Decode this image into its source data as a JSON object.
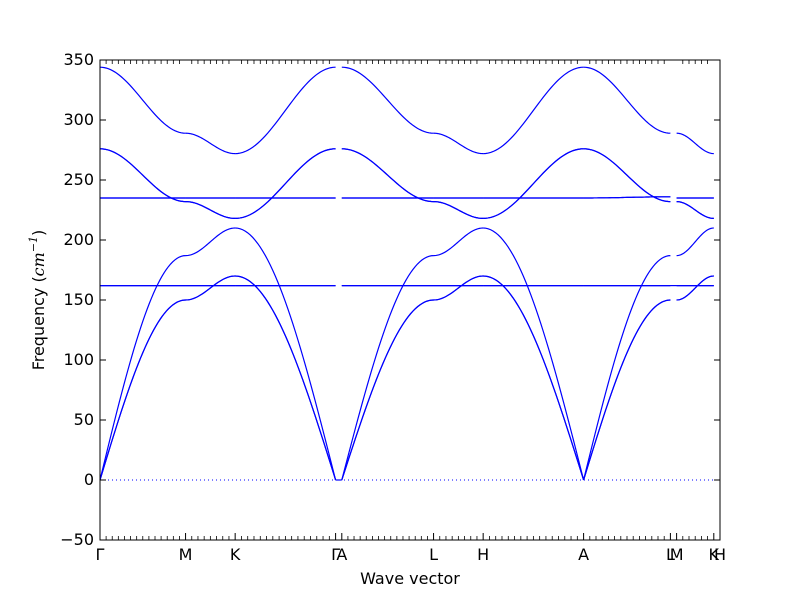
{
  "chart_data": {
    "type": "line",
    "title": "",
    "xlabel": "Wave vector",
    "ylabel_prefix": "Frequency (",
    "ylabel_unit_base": "cm",
    "ylabel_unit_exp": "−1",
    "ylabel_suffix": ")",
    "ylim": [
      -50,
      350
    ],
    "xlim": [
      0,
      5.0
    ],
    "yticks": [
      -50,
      0,
      50,
      100,
      150,
      200,
      250,
      300,
      350
    ],
    "ytick_labels": [
      "−50",
      "0",
      "50",
      "100",
      "150",
      "200",
      "250",
      "300",
      "350"
    ],
    "grid": false,
    "legend": "none",
    "color": "#0000ff",
    "zero_line": {
      "y": 0,
      "style": "dotted"
    },
    "k_points": [
      {
        "label": "Γ",
        "x": 0.0
      },
      {
        "label": "M",
        "x": 0.69
      },
      {
        "label": "K",
        "x": 1.09
      },
      {
        "label": "Γ",
        "x": 1.9
      },
      {
        "label": "A",
        "x": 1.95
      },
      {
        "label": "L",
        "x": 2.69
      },
      {
        "label": "H",
        "x": 3.09
      },
      {
        "label": "A",
        "x": 3.9
      },
      {
        "label": "L",
        "x": 4.6
      },
      {
        "label": "M",
        "x": 4.65
      },
      {
        "label": "K",
        "x": 4.95
      },
      {
        "label": "H",
        "x": 5.0
      }
    ],
    "segments": [
      {
        "x": [
          0.0,
          0.69
        ],
        "series": [
          [
            0,
            150
          ],
          [
            0,
            150
          ],
          [
            0,
            187
          ],
          [
            162,
            162
          ],
          [
            162,
            162
          ],
          [
            235,
            235
          ],
          [
            235,
            235
          ],
          [
            276,
            232
          ],
          [
            276,
            232
          ],
          [
            344,
            289
          ]
        ]
      },
      {
        "x": [
          0.69,
          1.09
        ],
        "series": [
          [
            150,
            170
          ],
          [
            150,
            170
          ],
          [
            187,
            210
          ],
          [
            162,
            162
          ],
          [
            162,
            162
          ],
          [
            235,
            235
          ],
          [
            235,
            235
          ],
          [
            232,
            218
          ],
          [
            232,
            218
          ],
          [
            289,
            272
          ]
        ]
      },
      {
        "x": [
          1.09,
          1.9
        ],
        "series": [
          [
            170,
            0
          ],
          [
            170,
            0
          ],
          [
            210,
            0
          ],
          [
            162,
            162
          ],
          [
            162,
            162
          ],
          [
            235,
            235
          ],
          [
            235,
            235
          ],
          [
            218,
            276
          ],
          [
            218,
            276
          ],
          [
            272,
            344
          ]
        ]
      },
      {
        "x": [
          1.95,
          2.69
        ],
        "series": [
          [
            0,
            150
          ],
          [
            0,
            150
          ],
          [
            0,
            187
          ],
          [
            162,
            162
          ],
          [
            162,
            162
          ],
          [
            235,
            235
          ],
          [
            235,
            235
          ],
          [
            276,
            232
          ],
          [
            276,
            232
          ],
          [
            344,
            289
          ]
        ]
      },
      {
        "x": [
          2.69,
          3.09
        ],
        "series": [
          [
            150,
            170
          ],
          [
            150,
            170
          ],
          [
            187,
            210
          ],
          [
            162,
            162
          ],
          [
            162,
            162
          ],
          [
            235,
            235
          ],
          [
            235,
            235
          ],
          [
            232,
            218
          ],
          [
            232,
            218
          ],
          [
            289,
            272
          ]
        ]
      },
      {
        "x": [
          3.09,
          3.9
        ],
        "series": [
          [
            170,
            0
          ],
          [
            170,
            0
          ],
          [
            210,
            0
          ],
          [
            162,
            162
          ],
          [
            162,
            162
          ],
          [
            235,
            235
          ],
          [
            235,
            235
          ],
          [
            218,
            276
          ],
          [
            218,
            276
          ],
          [
            272,
            344
          ]
        ]
      },
      {
        "x": [
          3.9,
          4.6
        ],
        "series": [
          [
            0,
            150
          ],
          [
            0,
            150
          ],
          [
            0,
            187
          ],
          [
            162,
            162
          ],
          [
            162,
            162
          ],
          [
            235,
            236
          ],
          [
            235,
            236
          ],
          [
            276,
            232
          ],
          [
            276,
            232
          ],
          [
            344,
            289
          ]
        ]
      },
      {
        "x": [
          4.65,
          4.95
        ],
        "series": [
          [
            150,
            170
          ],
          [
            150,
            170
          ],
          [
            187,
            210
          ],
          [
            162,
            162
          ],
          [
            162,
            162
          ],
          [
            235,
            235
          ],
          [
            235,
            235
          ],
          [
            232,
            218
          ],
          [
            232,
            218
          ],
          [
            289,
            272
          ]
        ]
      }
    ]
  }
}
